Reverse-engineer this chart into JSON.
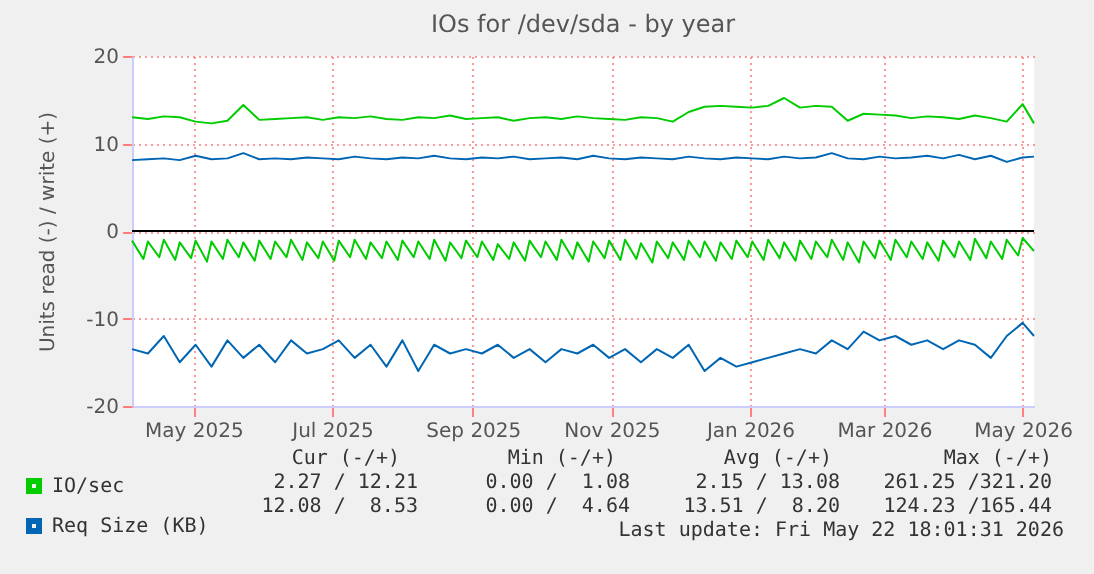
{
  "chart_data": {
    "type": "line",
    "title": "IOs for /dev/sda - by year",
    "ylabel": "Units read (-) / write (+)",
    "x": [
      "2025-04-19",
      "2025-04-26",
      "2025-05-03",
      "2025-05-10",
      "2025-05-17",
      "2025-05-24",
      "2025-05-31",
      "2025-06-07",
      "2025-06-14",
      "2025-06-21",
      "2025-06-28",
      "2025-07-05",
      "2025-07-12",
      "2025-07-19",
      "2025-07-26",
      "2025-08-02",
      "2025-08-09",
      "2025-08-16",
      "2025-08-23",
      "2025-08-30",
      "2025-09-06",
      "2025-09-13",
      "2025-09-20",
      "2025-09-27",
      "2025-10-04",
      "2025-10-11",
      "2025-10-18",
      "2025-10-25",
      "2025-11-01",
      "2025-11-08",
      "2025-11-15",
      "2025-11-22",
      "2025-11-29",
      "2025-12-06",
      "2025-12-13",
      "2025-12-20",
      "2025-12-27",
      "2026-01-03",
      "2026-01-10",
      "2026-01-17",
      "2026-01-24",
      "2026-01-31",
      "2026-02-07",
      "2026-02-14",
      "2026-02-21",
      "2026-02-28",
      "2026-03-07",
      "2026-03-14",
      "2026-03-21",
      "2026-03-28",
      "2026-04-04",
      "2026-04-11",
      "2026-04-18",
      "2026-04-25",
      "2026-05-02",
      "2026-05-09",
      "2026-05-16",
      "2026-05-21"
    ],
    "series": [
      {
        "name": "IO/sec",
        "color": "#00cc00",
        "values": [
          13.0,
          12.8,
          13.1,
          13.0,
          12.5,
          12.3,
          12.6,
          14.4,
          12.7,
          12.8,
          12.9,
          13.0,
          12.7,
          13.0,
          12.9,
          13.1,
          12.8,
          12.7,
          13.0,
          12.9,
          13.2,
          12.8,
          12.9,
          13.0,
          12.6,
          12.9,
          13.0,
          12.8,
          13.1,
          12.9,
          12.8,
          12.7,
          13.0,
          12.9,
          12.5,
          13.6,
          14.2,
          14.3,
          14.2,
          14.1,
          14.3,
          15.2,
          14.1,
          14.3,
          14.2,
          12.6,
          13.4,
          13.3,
          13.2,
          12.9,
          13.1,
          13.0,
          12.8,
          13.2,
          12.9,
          12.5,
          14.5,
          12.3
        ]
      },
      {
        "name": "Req Size (KB)",
        "color": "#0066b3",
        "values": [
          8.1,
          8.2,
          8.3,
          8.1,
          8.6,
          8.2,
          8.3,
          8.9,
          8.2,
          8.3,
          8.2,
          8.4,
          8.3,
          8.2,
          8.5,
          8.3,
          8.2,
          8.4,
          8.3,
          8.6,
          8.3,
          8.2,
          8.4,
          8.3,
          8.5,
          8.2,
          8.3,
          8.4,
          8.2,
          8.6,
          8.3,
          8.2,
          8.4,
          8.3,
          8.2,
          8.5,
          8.3,
          8.2,
          8.4,
          8.3,
          8.2,
          8.5,
          8.3,
          8.4,
          8.9,
          8.3,
          8.2,
          8.5,
          8.3,
          8.4,
          8.6,
          8.3,
          8.7,
          8.2,
          8.6,
          7.9,
          8.4,
          8.5
        ]
      },
      {
        "color": "#00cc00",
        "x": [
          "2025-04-19",
          "2025-04-24",
          "2025-04-26",
          "2025-05-01",
          "2025-05-03",
          "2025-05-08",
          "2025-05-10",
          "2025-05-15",
          "2025-05-17",
          "2025-05-22",
          "2025-05-24",
          "2025-05-29",
          "2025-05-31",
          "2025-06-05",
          "2025-06-07",
          "2025-06-12",
          "2025-06-14",
          "2025-06-19",
          "2025-06-21",
          "2025-06-26",
          "2025-06-28",
          "2025-07-03",
          "2025-07-05",
          "2025-07-10",
          "2025-07-12",
          "2025-07-17",
          "2025-07-19",
          "2025-07-24",
          "2025-07-26",
          "2025-07-31",
          "2025-08-02",
          "2025-08-07",
          "2025-08-09",
          "2025-08-14",
          "2025-08-16",
          "2025-08-21",
          "2025-08-23",
          "2025-08-28",
          "2025-08-30",
          "2025-09-04",
          "2025-09-06",
          "2025-09-11",
          "2025-09-13",
          "2025-09-18",
          "2025-09-20",
          "2025-09-25",
          "2025-09-27",
          "2025-10-02",
          "2025-10-04",
          "2025-10-09",
          "2025-10-11",
          "2025-10-16",
          "2025-10-18",
          "2025-10-23",
          "2025-10-25",
          "2025-10-30",
          "2025-11-01",
          "2025-11-06",
          "2025-11-08",
          "2025-11-13",
          "2025-11-15",
          "2025-11-20",
          "2025-11-22",
          "2025-11-27",
          "2025-11-29",
          "2025-12-04",
          "2025-12-06",
          "2025-12-11",
          "2025-12-13",
          "2025-12-18",
          "2025-12-20",
          "2025-12-25",
          "2025-12-27",
          "2026-01-01",
          "2026-01-03",
          "2026-01-08",
          "2026-01-10",
          "2026-01-15",
          "2026-01-17",
          "2026-01-22",
          "2026-01-24",
          "2026-01-29",
          "2026-01-31",
          "2026-02-05",
          "2026-02-07",
          "2026-02-12",
          "2026-02-14",
          "2026-02-19",
          "2026-02-21",
          "2026-02-26",
          "2026-02-28",
          "2026-03-05",
          "2026-03-07",
          "2026-03-12",
          "2026-03-14",
          "2026-03-19",
          "2026-03-21",
          "2026-03-26",
          "2026-03-28",
          "2026-04-02",
          "2026-04-04",
          "2026-04-09",
          "2026-04-11",
          "2026-04-16",
          "2026-04-18",
          "2026-04-23",
          "2026-04-25",
          "2026-04-30",
          "2026-05-02",
          "2026-05-07",
          "2026-05-09",
          "2026-05-14",
          "2026-05-16",
          "2026-05-21"
        ],
        "values": [
          -1.1,
          -3.2,
          -1.2,
          -3.0,
          -1.0,
          -3.3,
          -1.3,
          -3.1,
          -1.1,
          -3.5,
          -1.2,
          -3.2,
          -1.0,
          -3.0,
          -1.3,
          -3.4,
          -1.1,
          -3.2,
          -1.2,
          -3.0,
          -1.0,
          -3.3,
          -1.3,
          -3.1,
          -1.2,
          -3.4,
          -1.1,
          -3.0,
          -1.0,
          -3.2,
          -1.3,
          -3.1,
          -1.2,
          -3.3,
          -1.1,
          -3.0,
          -1.2,
          -3.2,
          -1.0,
          -3.4,
          -1.3,
          -3.1,
          -1.1,
          -3.0,
          -1.2,
          -3.3,
          -1.5,
          -3.2,
          -1.3,
          -3.4,
          -1.1,
          -3.0,
          -1.2,
          -3.3,
          -1.0,
          -3.2,
          -1.3,
          -3.5,
          -1.2,
          -3.1,
          -1.1,
          -3.3,
          -1.0,
          -3.2,
          -1.4,
          -3.6,
          -1.2,
          -3.1,
          -1.3,
          -3.3,
          -1.1,
          -3.0,
          -1.2,
          -3.4,
          -1.3,
          -3.2,
          -1.1,
          -3.0,
          -1.2,
          -3.3,
          -1.0,
          -3.1,
          -1.3,
          -3.4,
          -1.1,
          -3.2,
          -1.2,
          -3.0,
          -1.0,
          -3.3,
          -1.3,
          -3.6,
          -1.2,
          -3.1,
          -1.1,
          -3.3,
          -1.0,
          -3.0,
          -1.2,
          -3.2,
          -1.3,
          -3.4,
          -1.1,
          -3.0,
          -1.2,
          -3.3,
          -0.9,
          -3.1,
          -1.2,
          -3.2,
          -1.0,
          -2.8,
          -0.8,
          -2.3
        ]
      },
      {
        "color": "#0066b3",
        "values": [
          -13.5,
          -14.0,
          -12.0,
          -15.0,
          -13.0,
          -15.5,
          -12.5,
          -14.5,
          -13.0,
          -15.0,
          -12.5,
          -14.0,
          -13.5,
          -12.5,
          -14.5,
          -13.0,
          -15.5,
          -12.5,
          -16.0,
          -13.0,
          -14.0,
          -13.5,
          -14.0,
          -13.0,
          -14.5,
          -13.5,
          -15.0,
          -13.5,
          -14.0,
          -13.0,
          -14.5,
          -13.5,
          -15.0,
          -13.5,
          -14.5,
          -13.0,
          -16.0,
          -14.5,
          -15.5,
          -15.0,
          -14.5,
          -14.0,
          -13.5,
          -14.0,
          -12.5,
          -13.5,
          -11.5,
          -12.5,
          -12.0,
          -13.0,
          -12.5,
          -13.5,
          -12.5,
          -13.0,
          -14.5,
          -12.0,
          -10.5,
          -12.0
        ]
      }
    ],
    "xlim": [
      "2025-04-19",
      "2026-05-21"
    ],
    "xticks": [
      {
        "value": "2025-05-16",
        "label": "May 2025"
      },
      {
        "value": "2025-07-16",
        "label": "Jul 2025"
      },
      {
        "value": "2025-09-16",
        "label": "Sep 2025"
      },
      {
        "value": "2025-11-16",
        "label": "Nov 2025"
      },
      {
        "value": "2026-01-16",
        "label": "Jan 2026"
      },
      {
        "value": "2026-03-16",
        "label": "Mar 2026"
      },
      {
        "value": "2026-05-16",
        "label": "May 2026"
      }
    ],
    "ylim": [
      -20,
      20
    ],
    "yticks": [
      -20,
      -10,
      0,
      10,
      20
    ],
    "ref_lines": [
      {
        "axis": "y",
        "value": 0,
        "color": "#000000"
      }
    ],
    "grid": true,
    "legend": "bottom",
    "annotations": [
      "Cur (-/+)",
      "Min (-/+)",
      "Avg (-/+)",
      "Max (-/+)",
      "2.27 / 12.21",
      "0.00 /  1.08",
      "2.15 / 13.08",
      "261.25 /321.20",
      "12.08 /  8.53",
      "0.00 /  4.64",
      "13.51 /  8.20",
      "124.23 /165.44",
      "Last update: Fri May 22 18:01:31 2026"
    ]
  }
}
